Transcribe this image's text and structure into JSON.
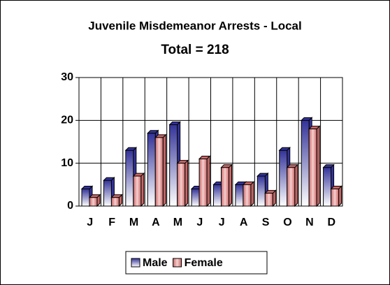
{
  "chart_data": {
    "type": "bar",
    "title": "Juvenile Misdemeanor Arrests - Local",
    "subtitle": "Total = 218",
    "categories": [
      "J",
      "F",
      "M",
      "A",
      "M",
      "J",
      "J",
      "A",
      "S",
      "O",
      "N",
      "D"
    ],
    "series": [
      {
        "name": "Male",
        "color": "#333399",
        "values": [
          4,
          6,
          13,
          17,
          19,
          4,
          5,
          5,
          7,
          13,
          20,
          9
        ]
      },
      {
        "name": "Female",
        "color": "#cc6666",
        "values": [
          2,
          2,
          7,
          16,
          10,
          11,
          9,
          5,
          3,
          9,
          18,
          4
        ]
      }
    ],
    "ylim": [
      0,
      30
    ],
    "yticks": [
      0,
      10,
      20,
      30
    ],
    "grid": true,
    "legend": "bottom"
  }
}
